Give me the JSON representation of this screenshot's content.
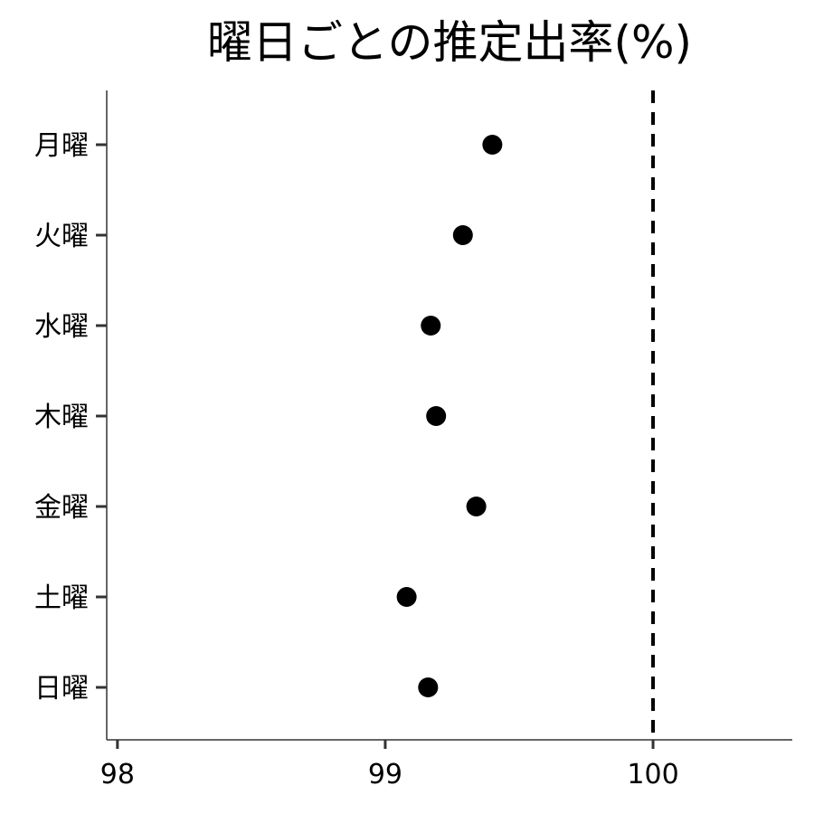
{
  "chart_data": {
    "type": "scatter",
    "title": "曜日ごとの推定出率(%)",
    "xlabel": "",
    "ylabel": "",
    "xlim": [
      97.96,
      100.52
    ],
    "x_ticks": [
      "98",
      "99",
      "100"
    ],
    "x_tick_values": [
      98,
      99,
      100
    ],
    "categories": [
      "月曜",
      "火曜",
      "水曜",
      "木曜",
      "金曜",
      "土曜",
      "日曜"
    ],
    "values": [
      99.4,
      99.29,
      99.17,
      99.19,
      99.34,
      99.08,
      99.16
    ],
    "reference_line": {
      "x": 100,
      "style": "dashed"
    },
    "grid": false,
    "legend": "none",
    "colors": {
      "point": "#000000",
      "axis": "#333333",
      "reference": "#000000"
    }
  }
}
